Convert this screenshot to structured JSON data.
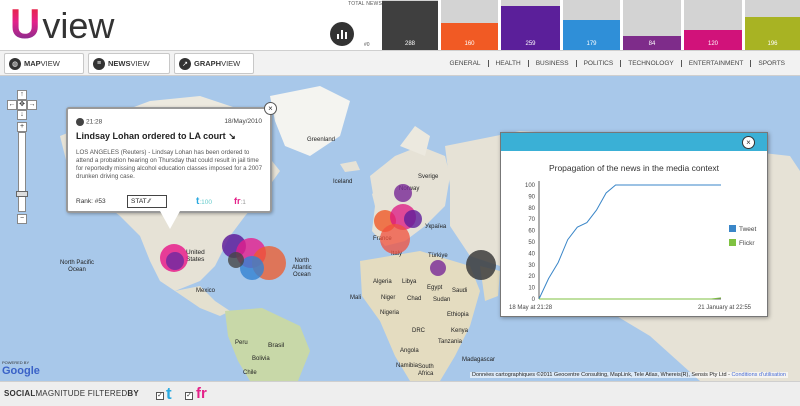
{
  "brand": {
    "logo_letter": "U",
    "logo_word": "view"
  },
  "header": {
    "total_news_label": "TOTAL NEWS",
    "zero_label": "#0",
    "bars": [
      {
        "value": 288,
        "fill_ratio": 0.99,
        "color": "#3f3f3f"
      },
      {
        "value": 160,
        "fill_ratio": 0.55,
        "color": "#f15a24"
      },
      {
        "value": 259,
        "fill_ratio": 0.89,
        "color": "#5b1f9a"
      },
      {
        "value": 179,
        "fill_ratio": 0.61,
        "color": "#2f8fd8"
      },
      {
        "value": 84,
        "fill_ratio": 0.29,
        "color": "#7e2c8a"
      },
      {
        "value": 120,
        "fill_ratio": 0.41,
        "color": "#d1127a"
      },
      {
        "value": 196,
        "fill_ratio": 0.67,
        "color": "#a8b323"
      }
    ]
  },
  "nav": {
    "views": [
      {
        "bold": "MAP",
        "rest": "VIEW",
        "icon": "globe-icon"
      },
      {
        "bold": "NEWS",
        "rest": "VIEW",
        "icon": "list-icon"
      },
      {
        "bold": "GRAPH",
        "rest": "VIEW",
        "icon": "graph-icon"
      }
    ],
    "categories": [
      "GENERAL",
      "HEALTH",
      "BUSINESS",
      "POLITICS",
      "TECHNOLOGY",
      "ENTERTAINMENT",
      "SPORTS"
    ]
  },
  "map": {
    "labels": {
      "greenland": "Greenland",
      "iceland": "Iceland",
      "norway": "Norway",
      "united_states": "United\nStates",
      "north_pacific": "North Pacific\nOcean",
      "north_atlantic": "North\nAtlantic\nOcean",
      "mexico": "Mexico",
      "brasil": "Brasil",
      "peru": "Peru",
      "bolivia": "Bolivia",
      "mali": "Mali",
      "niger": "Niger",
      "chad": "Chad",
      "sudan": "Sudan",
      "algeria": "Algeria",
      "libya": "Libya",
      "egypt": "Egypt",
      "saudi": "Saudi",
      "nigeria": "Nigeria",
      "ethiopia": "Ethiopia",
      "drc": "DRC",
      "tanzania": "Tanzania",
      "kenya": "Kenya",
      "angola": "Angola",
      "turkey": "Türkiye",
      "ukraine": "Україна",
      "italy": "Italy",
      "france": "France",
      "sverige": "Sverige",
      "namibia": "Namibia",
      "south_africa": "South\nAfrica",
      "madagascar": "Madagascar",
      "chile": "Chile"
    },
    "credit": "Données cartographiques ©2011 Geocentre Consulting, MapLink, Tele Atlas, Whereis(R), Sensis Pty Ltd - ",
    "credit_link": "Conditions d'utilisation",
    "powered_by": "POWERED BY",
    "google": "Google"
  },
  "news": {
    "time": "21:28",
    "date": "18/May/2010",
    "title": "Lindsay Lohan ordered to LA court",
    "body": "LOS ANGELES (Reuters) - Lindsay Lohan has been ordered to attend a probation hearing on Thursday that could result in jail time for reportedly missing alcohol education classes imposed for a 2007 drunken driving case.",
    "rank": "Rank: #53",
    "stat_label": "STAT",
    "tweet_count": ":100",
    "flickr_count": ":1",
    "close": "×"
  },
  "propagation": {
    "close": "×"
  },
  "chart_data": {
    "type": "line",
    "title": "Propagation of the news in the media context",
    "x": [
      "18 May at 21:28",
      "",
      "",
      "",
      "",
      "",
      "",
      "",
      "",
      "",
      "",
      "",
      "",
      "",
      "",
      "",
      "",
      "",
      "",
      "21 January at 22:55"
    ],
    "ylim": [
      0,
      100
    ],
    "yticks": [
      0,
      10,
      20,
      30,
      40,
      50,
      60,
      70,
      80,
      90,
      100
    ],
    "x_tick_labels": [
      "18 May at 21:28",
      "21 January at 22:55"
    ],
    "legend": "right",
    "series": [
      {
        "name": "Tweet",
        "color": "#3a86c8",
        "values": [
          0,
          18,
          32,
          52,
          63,
          67,
          78,
          93,
          100,
          100,
          100,
          100,
          100,
          100,
          100,
          100,
          100,
          100,
          100,
          100
        ]
      },
      {
        "name": "Flickr",
        "color": "#7fc241",
        "values": [
          0,
          0,
          0,
          0,
          0,
          0,
          0,
          0,
          0,
          0,
          0,
          0,
          0,
          0,
          0,
          0,
          0,
          0,
          0,
          1
        ]
      }
    ]
  },
  "footer": {
    "social": "SOCIAL",
    "magnitude": "MAGNITUDE",
    "filtered": "FILTERED",
    "by": "BY",
    "check": "✓",
    "tw": "t",
    "fr": "fr"
  }
}
